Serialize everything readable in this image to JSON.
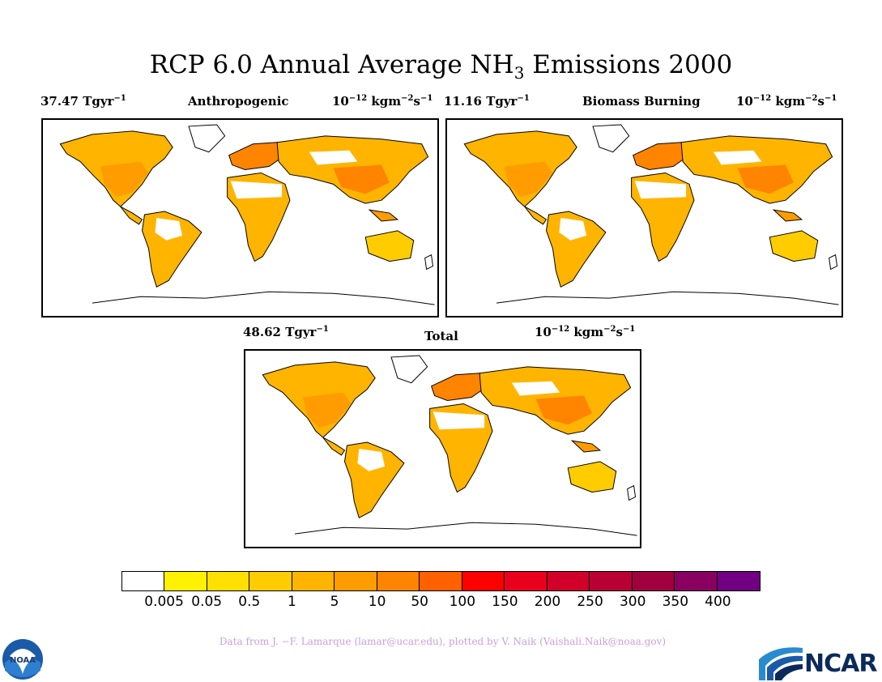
{
  "title": {
    "prefix": "RCP 6.0 Annual Average NH",
    "subscript": "3",
    "suffix": " Emissions 2000"
  },
  "panels": [
    {
      "total_value": "37.47 Tgyr",
      "name": "Anthropogenic",
      "units_base": "10",
      "units_exp": "−12",
      "units_rest": " kgm",
      "units_exp2": "−2",
      "units_s": "s",
      "units_exp3": "−1",
      "total_exp": "−1"
    },
    {
      "total_value": "11.16 Tgyr",
      "name": "Biomass Burning",
      "units_base": "10",
      "units_exp": "−12",
      "units_rest": " kgm",
      "units_exp2": "−2",
      "units_s": "s",
      "units_exp3": "−1",
      "total_exp": "−1"
    },
    {
      "total_value": "48.62 Tgyr",
      "name": "Total",
      "units_base": "10",
      "units_exp": "−12",
      "units_rest": " kgm",
      "units_exp2": "−2",
      "units_s": "s",
      "units_exp3": "−1",
      "total_exp": "−1"
    }
  ],
  "legend": {
    "colors": [
      "#ffffff",
      "#fff200",
      "#ffe000",
      "#ffcc00",
      "#ffb400",
      "#ff9c00",
      "#ff8400",
      "#ff6000",
      "#ff0000",
      "#e8001c",
      "#d0002a",
      "#b80034",
      "#a0003e",
      "#880060",
      "#700080"
    ],
    "labels": [
      "0.005",
      "0.05",
      "0.5",
      "1",
      "5",
      "10",
      "50",
      "100",
      "150",
      "200",
      "250",
      "300",
      "350",
      "400"
    ]
  },
  "credit": "Data from J. −F. Lamarque (lamar@ucar.edu), plotted by V. Naik (Vaishali.Naik@noaa.gov)",
  "logos": {
    "left": "NOAA",
    "right": "NCAR"
  }
}
